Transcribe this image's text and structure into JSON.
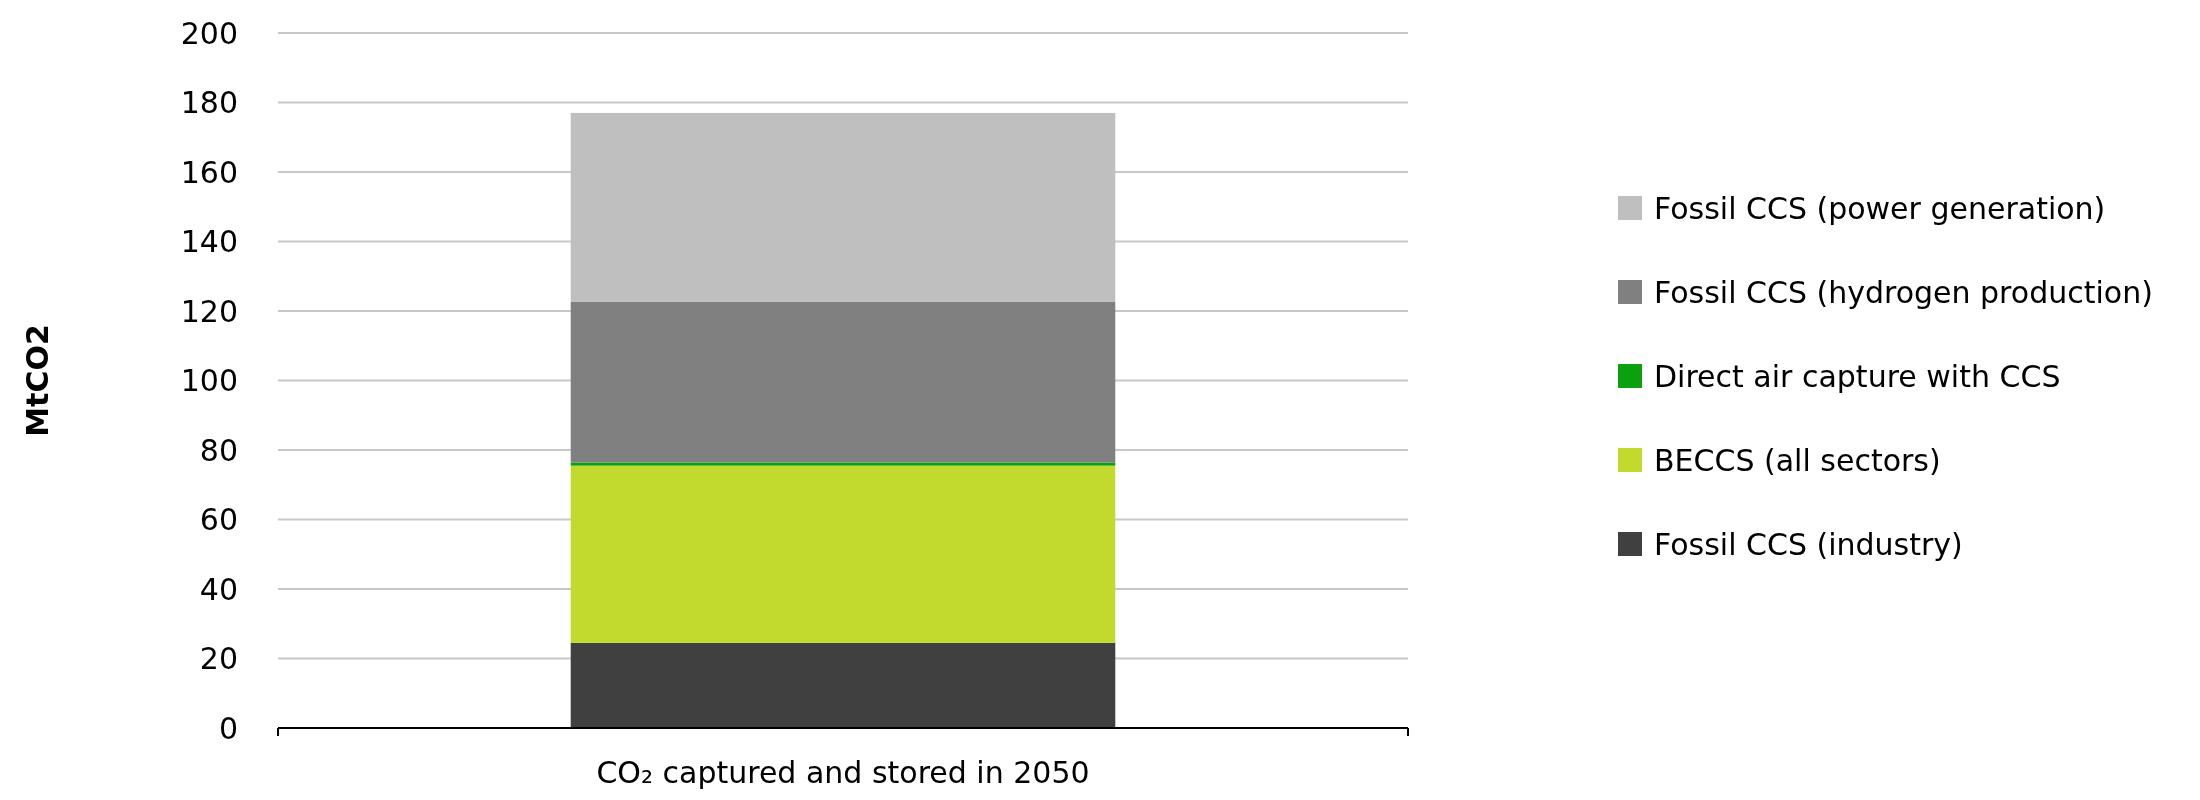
{
  "chart_data": {
    "type": "bar",
    "stacked": true,
    "categories": [
      "CO₂ captured and stored in 2050"
    ],
    "ylabel": "MtCO2",
    "ylim": [
      0,
      200
    ],
    "yticks": [
      0,
      20,
      40,
      60,
      80,
      100,
      120,
      140,
      160,
      180,
      200
    ],
    "grid": "y",
    "legend": "right",
    "series": [
      {
        "name": "Fossil CCS (industry)",
        "color": "#404040",
        "values": [
          24.5
        ]
      },
      {
        "name": "BECCS (all sectors)",
        "color": "#c2d92e",
        "values": [
          51
        ]
      },
      {
        "name": "Direct air capture with CCS",
        "color": "#0aa00e",
        "values": [
          0.9
        ]
      },
      {
        "name": "Fossil CCS (hydrogen production)",
        "color": "#808080",
        "values": [
          46.2
        ]
      },
      {
        "name": "Fossil CCS (power generation)",
        "color": "#bfbfbf",
        "values": [
          54.4
        ]
      }
    ]
  }
}
